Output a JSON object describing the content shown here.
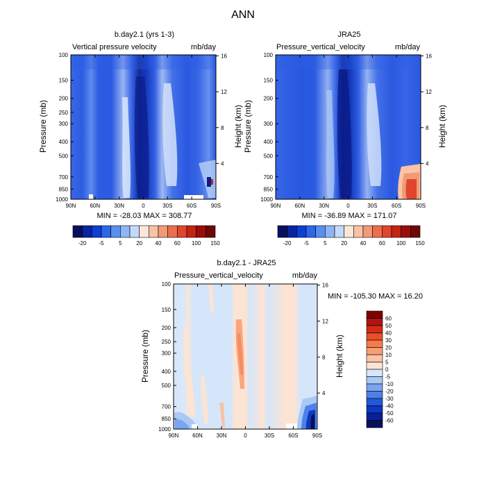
{
  "main_title": "ANN",
  "panels": [
    {
      "title": "b.day2.1 (yrs 1-3)",
      "left_label": "Vertical pressure velocity",
      "right_label": "mb/day",
      "minmax": "MIN = -28.03  MAX = 308.77"
    },
    {
      "title": "JRA25",
      "left_label": "Pressure_vertical_velocity",
      "right_label": "mb/day",
      "minmax": "MIN = -36.89  MAX = 171.07"
    },
    {
      "title": "b.day2.1 - JRA25",
      "left_label": "Pressure_vertical_velocity",
      "right_label": "mb/day",
      "minmax": "MIN = -105.30  MAX =  16.20"
    }
  ],
  "axes": {
    "ylabel": "Pressure (mb)",
    "ylabel_right": "Height (km)",
    "pressure_ticks": [
      "100",
      "150",
      "200",
      "250",
      "300",
      "400",
      "500",
      "700",
      "850",
      "1000"
    ],
    "pressure_ticks_top": [
      "100",
      "150",
      "200",
      "300",
      "400",
      "500",
      "700",
      "850",
      "1000"
    ],
    "lat_ticks": [
      "90N",
      "60N",
      "30N",
      "0",
      "30S",
      "60S",
      "90S"
    ],
    "height_ticks": [
      "16",
      "12",
      "8",
      "4"
    ]
  },
  "colorbar_top": {
    "labels": [
      "-20",
      "-5",
      "5",
      "20",
      "40",
      "60",
      "100",
      "150"
    ],
    "colors": [
      "#08105e",
      "#0a23a0",
      "#0d3fd2",
      "#2d66ea",
      "#5a8ef0",
      "#8fb5f5",
      "#c4dafb",
      "#fce6d8",
      "#f8c2a4",
      "#f29a76",
      "#ec6e4d",
      "#e0462e",
      "#c42412",
      "#9a0d0b",
      "#6e0808"
    ]
  },
  "colorbar_bottom": {
    "labels": [
      "60",
      "50",
      "40",
      "30",
      "20",
      "10",
      "5",
      "0",
      "-5",
      "-10",
      "-20",
      "-30",
      "-40",
      "-50",
      "-60"
    ],
    "colors": [
      "#800000",
      "#b01313",
      "#d42b15",
      "#e65029",
      "#f57a4c",
      "#f89e74",
      "#fbc4a6",
      "#fde4d2",
      "#d6e6fa",
      "#a9c8f4",
      "#7aa4ee",
      "#4d80e8",
      "#2258dc",
      "#0d38bf",
      "#0a2097",
      "#08105e"
    ]
  },
  "chart_data": [
    {
      "type": "heatmap",
      "title": "b.day2.1 (yrs 1-3)",
      "x": [
        "90N",
        "60N",
        "30N",
        "0",
        "30S",
        "60S",
        "90S"
      ],
      "ylabel": "Pressure (mb)",
      "ylim": [
        1000,
        100
      ],
      "y_scale": "log",
      "range": [
        -28.03,
        308.77
      ]
    },
    {
      "type": "heatmap",
      "title": "JRA25",
      "x": [
        "90N",
        "60N",
        "30N",
        "0",
        "30S",
        "60S",
        "90S"
      ],
      "ylabel": "Pressure (mb)",
      "ylim": [
        1000,
        100
      ],
      "y_scale": "log",
      "range": [
        -36.89,
        171.07
      ]
    },
    {
      "type": "heatmap",
      "title": "b.day2.1 - JRA25",
      "x": [
        "90N",
        "60N",
        "30N",
        "0",
        "30S",
        "60S",
        "90S"
      ],
      "ylabel": "Pressure (mb)",
      "ylim": [
        1000,
        100
      ],
      "y_scale": "log",
      "range": [
        -105.3,
        16.2
      ]
    }
  ]
}
